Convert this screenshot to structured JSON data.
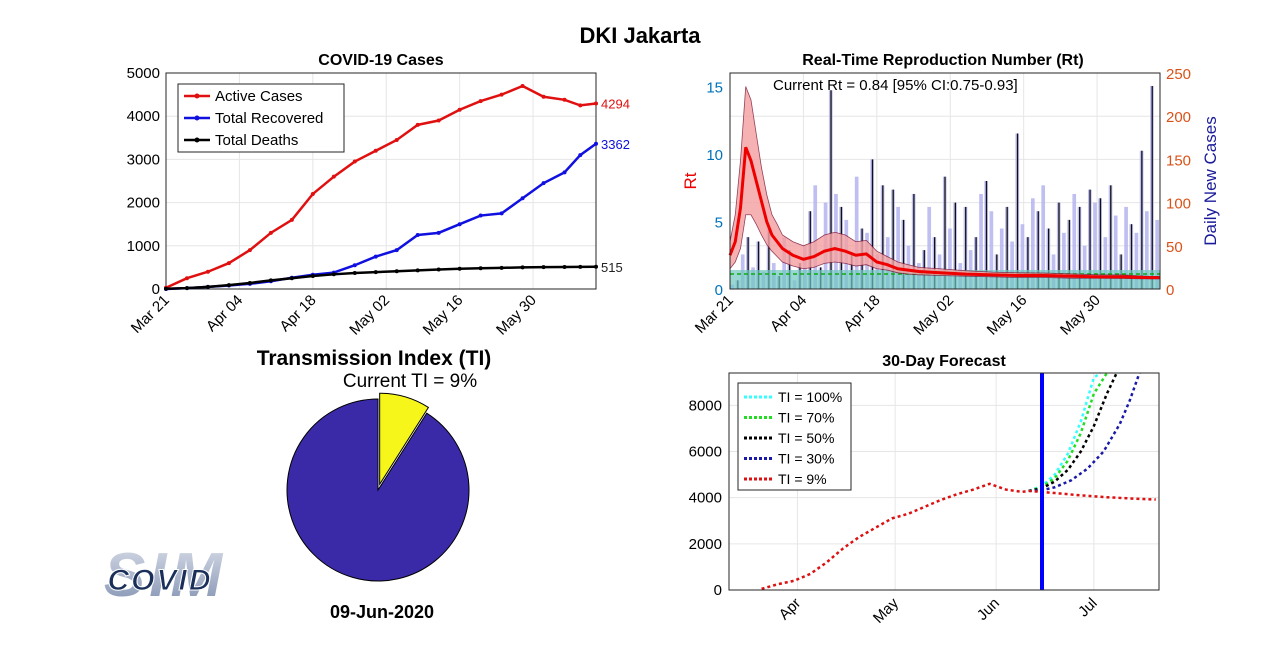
{
  "page_title": "DKI Jakarta",
  "date_label": "09-Jun-2020",
  "colors": {
    "active": "#e01010",
    "recovered": "#1010e0",
    "deaths": "#000000",
    "rt_line": "#ee0000",
    "rt_band": "#f4a0a0",
    "bars": "#b4b4ee",
    "pie_main": "#3a2aa8",
    "pie_slice": "#f6f61a",
    "axis_right": "#d95319",
    "axis_left": "#0072bd",
    "forecast_vline": "#0000ff"
  },
  "chart_data": [
    {
      "type": "line",
      "title": "COVID-19 Cases",
      "xlabel": "",
      "ylabel": "",
      "x_ticks": [
        "Mar 21",
        "Apr 04",
        "Apr 18",
        "May 02",
        "May 16",
        "May 30"
      ],
      "ylim": [
        0,
        5000
      ],
      "y_ticks": [
        "0",
        "1000",
        "2000",
        "3000",
        "4000",
        "5000"
      ],
      "grid": true,
      "legend_position": "top-left",
      "series": [
        {
          "name": "Active Cases",
          "end_label": "4294",
          "days": [
            0,
            4,
            8,
            12,
            16,
            20,
            24,
            28,
            32,
            36,
            40,
            44,
            48,
            52,
            56,
            60,
            64,
            68,
            72,
            76,
            79,
            82
          ],
          "values": [
            30,
            250,
            400,
            600,
            900,
            1300,
            1600,
            2200,
            2600,
            2950,
            3200,
            3450,
            3800,
            3900,
            4150,
            4350,
            4500,
            4700,
            4450,
            4380,
            4250,
            4294
          ]
        },
        {
          "name": "Total Recovered",
          "end_label": "3362",
          "days": [
            0,
            4,
            8,
            12,
            16,
            20,
            24,
            28,
            32,
            36,
            40,
            44,
            48,
            52,
            56,
            60,
            64,
            68,
            72,
            76,
            79,
            82
          ],
          "values": [
            0,
            20,
            50,
            80,
            120,
            180,
            260,
            330,
            380,
            550,
            750,
            900,
            1250,
            1300,
            1500,
            1700,
            1750,
            2100,
            2450,
            2700,
            3100,
            3362
          ]
        },
        {
          "name": "Total Deaths",
          "end_label": "515",
          "days": [
            0,
            4,
            8,
            12,
            16,
            20,
            24,
            28,
            32,
            36,
            40,
            44,
            48,
            52,
            56,
            60,
            64,
            68,
            72,
            76,
            79,
            82
          ],
          "values": [
            5,
            20,
            50,
            90,
            140,
            200,
            250,
            300,
            340,
            370,
            390,
            410,
            430,
            450,
            470,
            480,
            490,
            500,
            505,
            510,
            512,
            515
          ]
        }
      ]
    },
    {
      "type": "line",
      "title": "Real-Time Reproduction Number (Rt)",
      "annotation": "Current Rt = 0.84 [95% CI:0.75-0.93]",
      "ylabel": "Rt",
      "ylabel_right": "Daily New Cases",
      "x_ticks": [
        "Mar 21",
        "Apr 04",
        "Apr 18",
        "May 02",
        "May 16",
        "May 30"
      ],
      "ylim": [
        0,
        16
      ],
      "y_ticks": [
        "0",
        "5",
        "10",
        "15"
      ],
      "ylim_right": [
        0,
        250
      ],
      "y_ticks_right": [
        "0",
        "50",
        "100",
        "150",
        "200",
        "250"
      ],
      "grid": true,
      "rt": {
        "days": [
          0,
          1,
          2,
          3,
          4,
          5,
          6,
          7,
          8,
          9,
          10,
          12,
          14,
          16,
          18,
          20,
          22,
          24,
          26,
          28,
          30,
          32,
          34,
          36,
          40,
          45,
          50,
          55,
          60,
          65,
          70,
          75,
          80,
          82
        ],
        "values": [
          2.5,
          3.5,
          6,
          10.5,
          9.5,
          8,
          6.5,
          5,
          4,
          3.5,
          3,
          2.5,
          2.2,
          2.4,
          2.8,
          3,
          2.8,
          2.5,
          2.6,
          2,
          1.8,
          1.5,
          1.4,
          1.3,
          1.2,
          1.1,
          1.05,
          1,
          1,
          0.95,
          0.9,
          0.9,
          0.84,
          0.84
        ],
        "lower": [
          1.5,
          2,
          3,
          5.5,
          5.5,
          4.8,
          4,
          3.3,
          2.8,
          2.4,
          2,
          1.7,
          1.5,
          1.6,
          1.9,
          2,
          1.9,
          1.7,
          1.8,
          1.5,
          1.4,
          1.2,
          1.1,
          1.05,
          1,
          0.95,
          0.9,
          0.85,
          0.85,
          0.8,
          0.8,
          0.78,
          0.75,
          0.75
        ],
        "upper": [
          3.5,
          5.5,
          9.5,
          15,
          14,
          11.5,
          9,
          7,
          5.5,
          4.8,
          4,
          3.5,
          3.2,
          3.5,
          4,
          4.2,
          4,
          3.5,
          3.6,
          2.8,
          2.4,
          2,
          1.8,
          1.6,
          1.5,
          1.35,
          1.25,
          1.2,
          1.18,
          1.12,
          1.05,
          1.04,
          0.93,
          0.93
        ]
      },
      "daily_new_cases": [
        5,
        10,
        40,
        60,
        25,
        55,
        20,
        70,
        30,
        15,
        60,
        45,
        10,
        30,
        50,
        90,
        120,
        25,
        100,
        230,
        110,
        95,
        80,
        40,
        130,
        70,
        65,
        150,
        40,
        120,
        60,
        115,
        95,
        80,
        50,
        110,
        30,
        45,
        95,
        60,
        40,
        130,
        70,
        100,
        30,
        95,
        45,
        60,
        110,
        125,
        90,
        40,
        70,
        95,
        55,
        180,
        75,
        60,
        105,
        90,
        120,
        70,
        40,
        100,
        65,
        80,
        110,
        95,
        50,
        115,
        100,
        105,
        60,
        120,
        85,
        40,
        95,
        75,
        65,
        160,
        90,
        235,
        80
      ]
    },
    {
      "type": "pie",
      "title": "Transmission Index (TI)",
      "subtitle": "Current TI = 9%",
      "slices": [
        {
          "label": "TI",
          "value": 9
        },
        {
          "label": "",
          "value": 91
        }
      ]
    },
    {
      "type": "line",
      "title": "30-Day Forecast",
      "x_ticks": [
        "Apr",
        "May",
        "Jun",
        "Jul"
      ],
      "ylim": [
        0,
        9400
      ],
      "y_ticks": [
        "0",
        "2000",
        "4000",
        "6000",
        "8000"
      ],
      "grid": true,
      "legend_position": "top-left",
      "history": {
        "days": [
          0,
          5,
          10,
          15,
          20,
          25,
          30,
          35,
          40,
          45,
          50,
          55,
          60,
          65,
          70,
          75,
          80,
          82
        ],
        "values": [
          50,
          250,
          400,
          700,
          1200,
          1800,
          2300,
          2700,
          3100,
          3300,
          3600,
          3900,
          4150,
          4350,
          4600,
          4350,
          4250,
          4294
        ]
      },
      "series": [
        {
          "name": "TI = 100%",
          "color": "#33ffff",
          "days": [
            82,
            86,
            90,
            94,
            98,
            102,
            104
          ],
          "values": [
            4294,
            4500,
            5000,
            5900,
            7300,
            9200,
            9400
          ]
        },
        {
          "name": "TI = 70%",
          "color": "#22dd22",
          "days": [
            82,
            86,
            90,
            94,
            98,
            102,
            106
          ],
          "values": [
            4294,
            4450,
            4850,
            5600,
            6800,
            8500,
            9400
          ]
        },
        {
          "name": "TI = 50%",
          "color": "#000000",
          "days": [
            82,
            86,
            90,
            94,
            98,
            102,
            106,
            109
          ],
          "values": [
            4294,
            4400,
            4700,
            5200,
            6000,
            7100,
            8500,
            9400
          ]
        },
        {
          "name": "TI = 30%",
          "color": "#1a1aaa",
          "days": [
            82,
            86,
            90,
            95,
            100,
            105,
            110,
            113,
            116
          ],
          "values": [
            4294,
            4320,
            4450,
            4750,
            5250,
            6000,
            7200,
            8200,
            9400
          ]
        },
        {
          "name": "TI = 9%",
          "color": "#dd1111",
          "days": [
            82,
            90,
            98,
            106,
            114,
            121
          ],
          "values": [
            4294,
            4200,
            4100,
            4020,
            3960,
            3920
          ]
        }
      ]
    }
  ],
  "logo_text": "COVID SIM"
}
